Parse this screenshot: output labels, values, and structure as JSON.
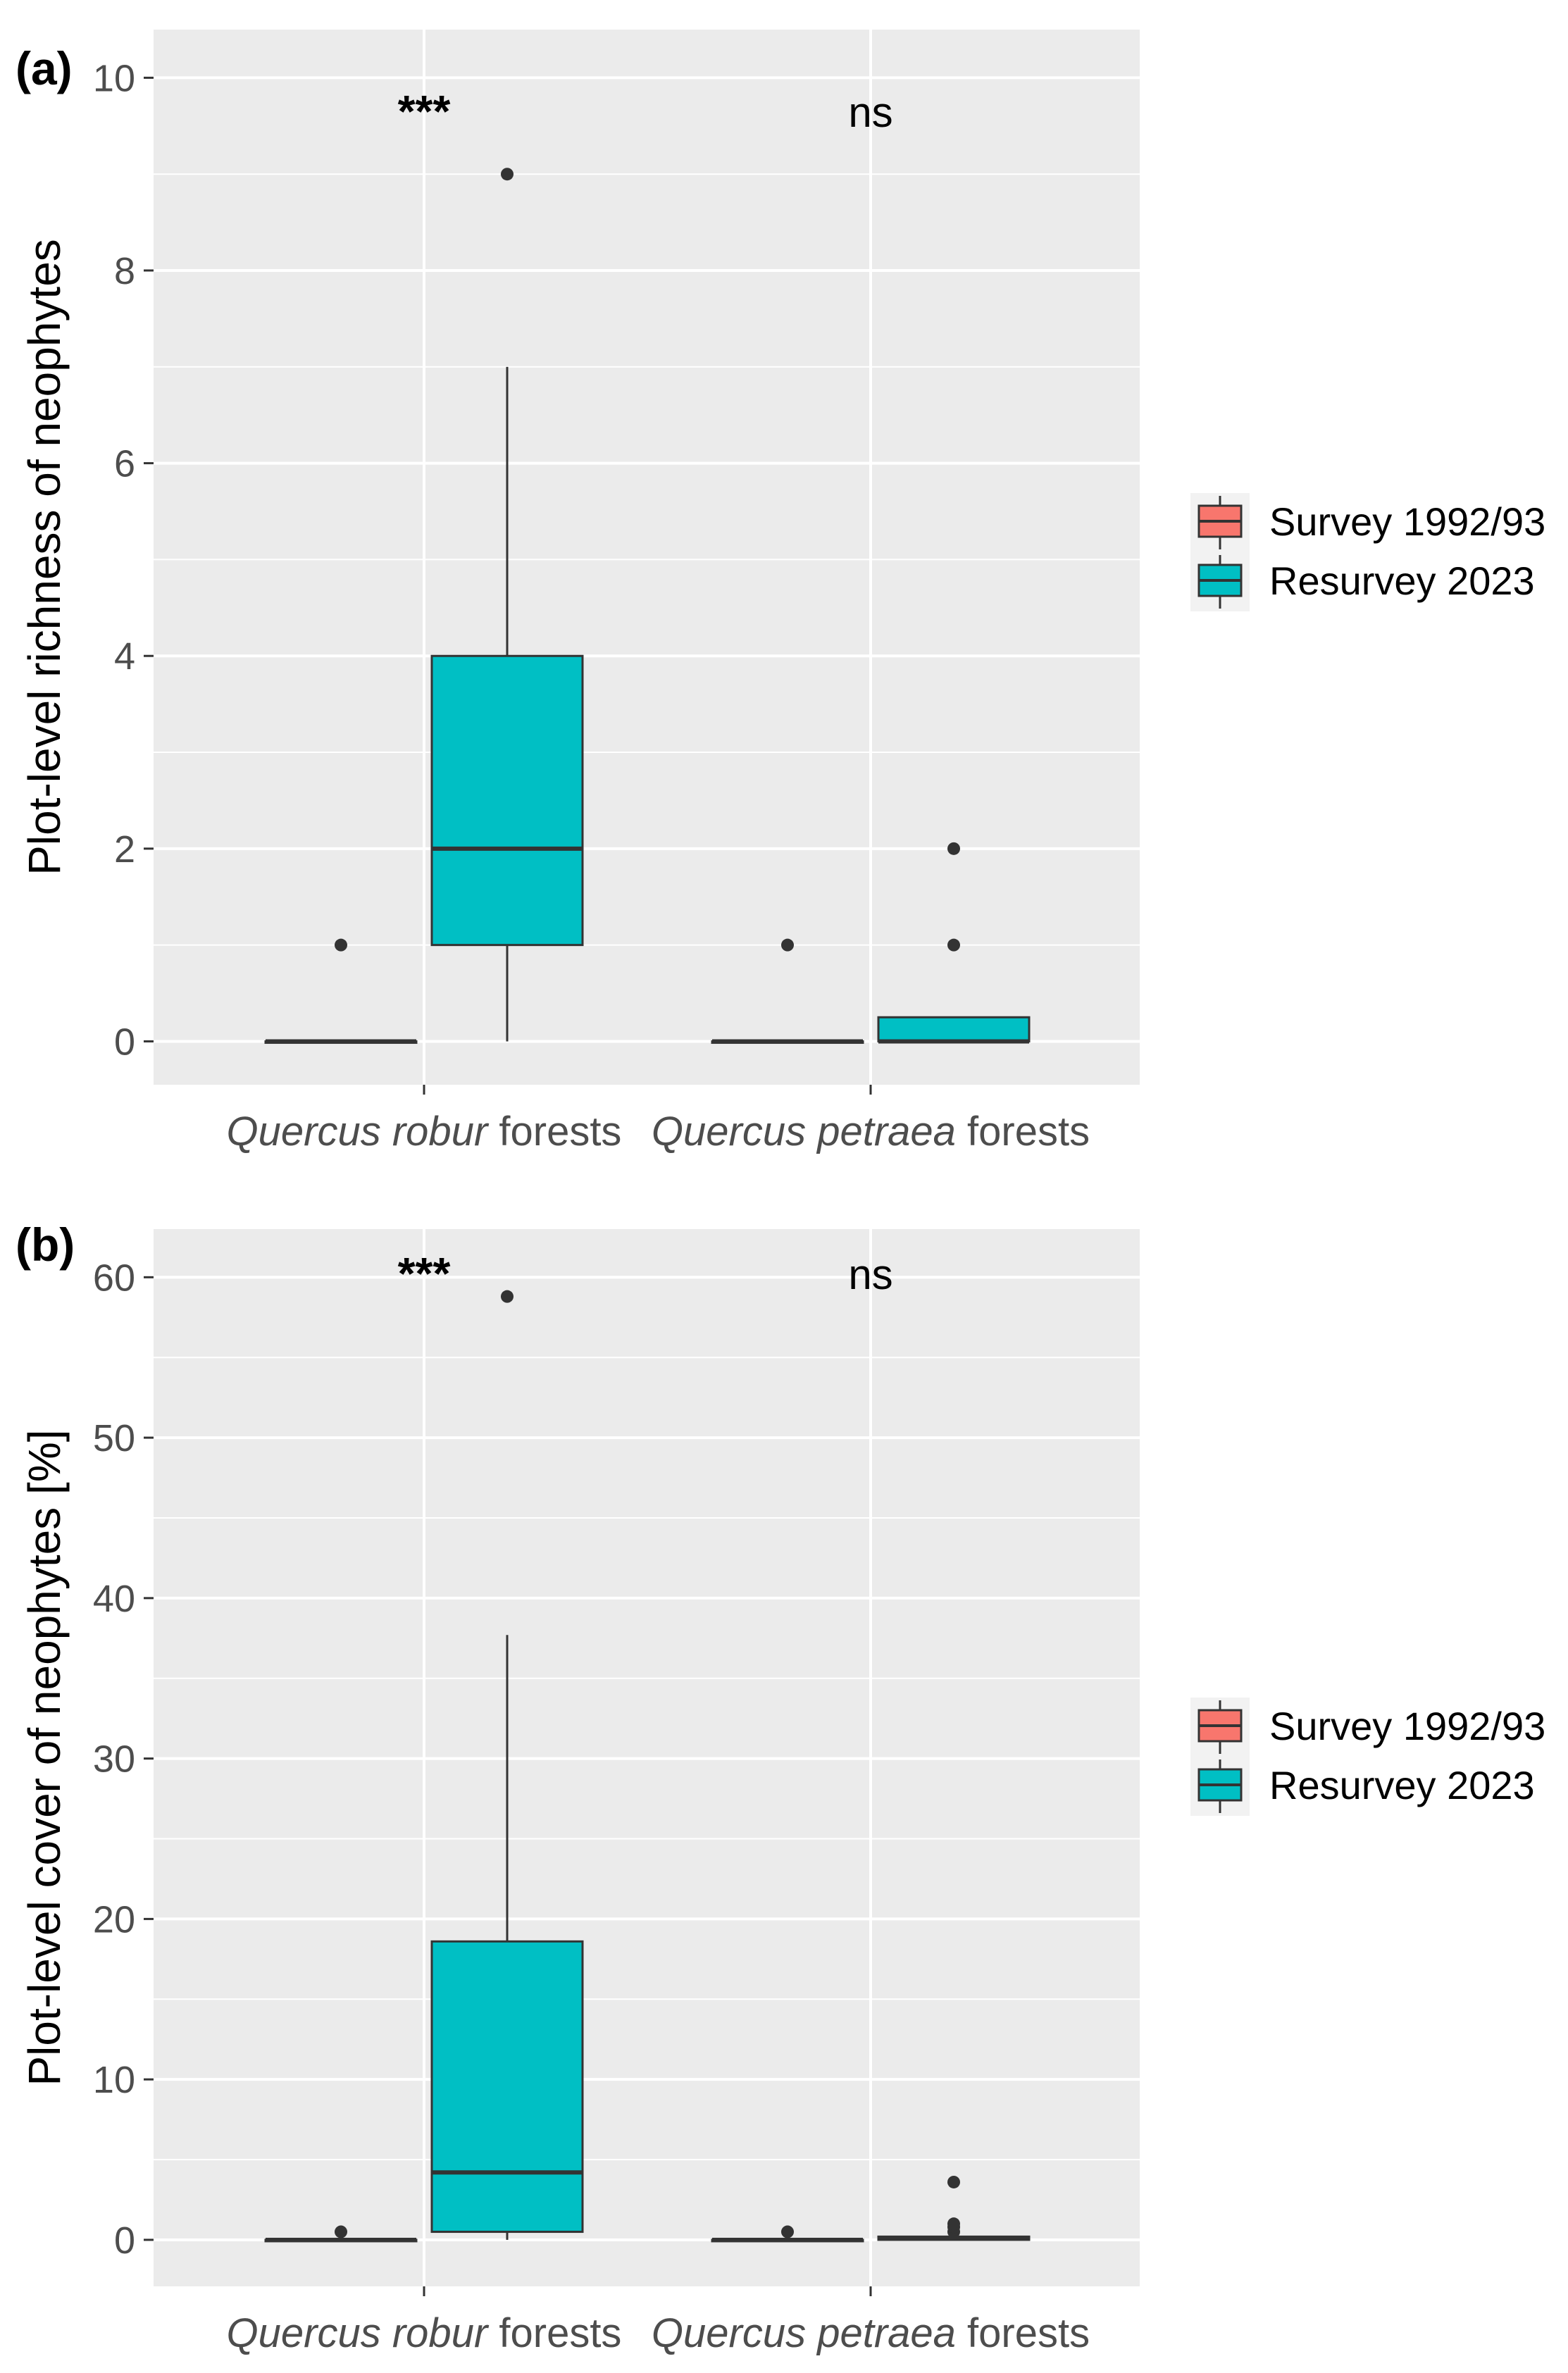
{
  "chart_data": [
    {
      "panel_tag": "(a)",
      "type": "box",
      "ylabel": "Plot-level richness of neophytes",
      "ylim": [
        -0.45,
        10.5
      ],
      "yticks": [
        0,
        2,
        4,
        6,
        8,
        10
      ],
      "categories": [
        {
          "italic": "Quercus robur",
          "plain": " forests"
        },
        {
          "italic": "Quercus petraea",
          "plain": " forests"
        }
      ],
      "significance": [
        "***",
        "ns"
      ],
      "series": [
        {
          "name": "Survey 1992/93",
          "color": "#f8766d",
          "boxes": [
            {
              "q1": 0,
              "median": 0,
              "q3": 0,
              "whisker_low": 0,
              "whisker_high": 0,
              "outliers": [
                1
              ]
            },
            {
              "q1": 0,
              "median": 0,
              "q3": 0,
              "whisker_low": 0,
              "whisker_high": 0,
              "outliers": [
                1
              ]
            }
          ]
        },
        {
          "name": "Resurvey 2023",
          "color": "#00bfc4",
          "boxes": [
            {
              "q1": 1,
              "median": 2,
              "q3": 4,
              "whisker_low": 0,
              "whisker_high": 7,
              "outliers": [
                9
              ]
            },
            {
              "q1": 0,
              "median": 0,
              "q3": 0.25,
              "whisker_low": 0,
              "whisker_high": 0.25,
              "outliers": [
                1,
                2
              ]
            }
          ]
        }
      ]
    },
    {
      "panel_tag": "(b)",
      "type": "box",
      "ylabel": "Plot-level cover of neophytes [%]",
      "ylim": [
        -2.9,
        63
      ],
      "yticks": [
        0,
        10,
        20,
        30,
        40,
        50,
        60
      ],
      "categories": [
        {
          "italic": "Quercus robur",
          "plain": " forests"
        },
        {
          "italic": "Quercus petraea",
          "plain": " forests"
        }
      ],
      "significance": [
        "***",
        "ns"
      ],
      "series": [
        {
          "name": "Survey 1992/93",
          "color": "#f8766d",
          "boxes": [
            {
              "q1": 0,
              "median": 0,
              "q3": 0,
              "whisker_low": 0,
              "whisker_high": 0,
              "outliers": [
                0.5
              ]
            },
            {
              "q1": 0,
              "median": 0,
              "q3": 0,
              "whisker_low": 0,
              "whisker_high": 0,
              "outliers": [
                0.5
              ]
            }
          ]
        },
        {
          "name": "Resurvey 2023",
          "color": "#00bfc4",
          "boxes": [
            {
              "q1": 0.5,
              "median": 4.2,
              "q3": 18.6,
              "whisker_low": 0,
              "whisker_high": 37.7,
              "outliers": [
                58.8
              ]
            },
            {
              "q1": 0,
              "median": 0.1,
              "q3": 0.2,
              "whisker_low": 0,
              "whisker_high": 0.2,
              "outliers": [
                0.5,
                0.8,
                1.0,
                3.6
              ]
            }
          ]
        }
      ]
    }
  ],
  "legend": {
    "items": [
      {
        "label": "Survey 1992/93",
        "color": "#f8766d"
      },
      {
        "label": "Resurvey 2023",
        "color": "#00bfc4"
      }
    ]
  }
}
